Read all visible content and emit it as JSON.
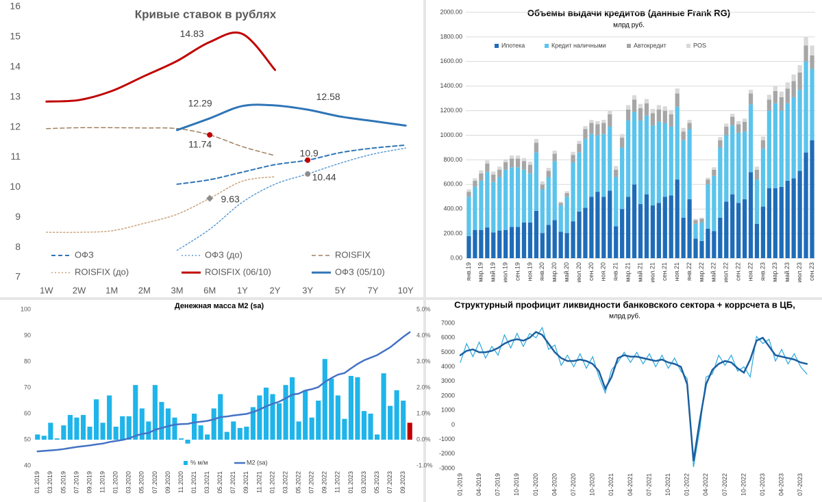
{
  "chart_data": [
    {
      "type": "line",
      "title": "Кривые ставок в рублях",
      "categories": [
        "1W",
        "2W",
        "1M",
        "2M",
        "3M",
        "6M",
        "1Y",
        "2Y",
        "3Y",
        "5Y",
        "7Y",
        "10Y"
      ],
      "ylim": [
        7,
        16
      ],
      "yticks": [
        7,
        8,
        9,
        10,
        11,
        12,
        13,
        14,
        15,
        16
      ],
      "smooth": true,
      "legend": "bottom",
      "series": [
        {
          "name": "ОФЗ",
          "color": "#2e75b6",
          "dash": "dashed",
          "width": 2,
          "marker_color": "#c00000",
          "values": [
            null,
            null,
            null,
            null,
            10.1,
            10.25,
            10.5,
            10.75,
            10.9,
            11.15,
            11.3,
            11.4
          ],
          "value_labels": [
            null,
            null,
            null,
            null,
            null,
            null,
            null,
            null,
            "10.9",
            null,
            null,
            null
          ]
        },
        {
          "name": "ОФЗ (до)",
          "color": "#5b9bd5",
          "dash": "dotted",
          "width": 1.5,
          "marker_color": "#8c8c8c",
          "values": [
            null,
            null,
            null,
            null,
            7.9,
            8.6,
            9.5,
            10.1,
            10.44,
            10.8,
            11.1,
            11.3
          ],
          "value_labels": [
            null,
            null,
            null,
            null,
            null,
            null,
            null,
            null,
            "10.44",
            null,
            null,
            null
          ]
        },
        {
          "name": "ROISFIX",
          "color": "#9e7f5f",
          "dash": "dashed",
          "width": 1.5,
          "marker_color": "#c00000",
          "values": [
            11.95,
            11.98,
            11.98,
            11.97,
            11.95,
            11.74,
            11.35,
            11.05,
            null,
            null,
            null,
            null
          ],
          "value_labels": [
            null,
            null,
            null,
            null,
            null,
            "11.74",
            null,
            null,
            null,
            null,
            null,
            null
          ]
        },
        {
          "name": "ROISFIX (до)",
          "color": "#c9a37a",
          "dash": "dotted",
          "width": 1.5,
          "marker_color": "#8c8c8c",
          "marker": "diamond",
          "values": [
            8.5,
            8.5,
            8.55,
            8.8,
            9.1,
            9.63,
            10.2,
            10.35,
            null,
            null,
            null,
            null
          ],
          "value_labels": [
            null,
            null,
            null,
            null,
            null,
            "9.63",
            null,
            null,
            null,
            null,
            null,
            null
          ]
        },
        {
          "name": "ROISFIX (06/10)",
          "color": "#c00000",
          "dash": "solid",
          "width": 3,
          "values": [
            12.85,
            12.9,
            13.2,
            13.7,
            14.2,
            14.83,
            15.1,
            13.9,
            null,
            null,
            null,
            null
          ],
          "value_labels": [
            null,
            null,
            null,
            null,
            null,
            "14.83",
            null,
            null,
            null,
            null,
            null,
            null
          ]
        },
        {
          "name": "ОФЗ (05/10)",
          "color": "#2e75b6",
          "dash": "solid",
          "width": 3,
          "values": [
            null,
            null,
            null,
            null,
            11.9,
            12.29,
            12.7,
            12.72,
            12.58,
            12.35,
            12.2,
            12.05
          ],
          "value_labels": [
            null,
            null,
            null,
            null,
            null,
            "12.29",
            null,
            null,
            "12.58",
            null,
            null,
            null
          ]
        }
      ]
    },
    {
      "type": "bar",
      "stacked": true,
      "title": "Объемы выдачи кредитов (данные Frank RG)",
      "subtitle": "млрд руб.",
      "grid": true,
      "legend": "top",
      "categories": [
        "янв.19",
        null,
        "мар.19",
        null,
        "май.19",
        null,
        "июл.19",
        null,
        "сен.19",
        null,
        "ноя.19",
        null,
        "янв.20",
        null,
        "мар.20",
        null,
        "май.20",
        null,
        "июл.20",
        null,
        "сен.20",
        null,
        "ноя.20",
        null,
        "янв.21",
        null,
        "мар.21",
        null,
        "май.21",
        null,
        "июл.21",
        null,
        "сен.21",
        null,
        "ноя.21",
        null,
        "янв.22",
        null,
        "мар.22",
        null,
        "май.22",
        null,
        "июл.22",
        null,
        "сен.22",
        null,
        "ноя.22",
        null,
        "янв.23",
        null,
        "мар.23",
        null,
        "май.23",
        null,
        "июл.23",
        null,
        "сен.23"
      ],
      "ylim": [
        0,
        2000
      ],
      "yticks": [
        {
          "value": 0,
          "label": "0.00"
        },
        {
          "value": 200,
          "label": "200.00"
        },
        {
          "value": 400,
          "label": "400.00"
        },
        {
          "value": 600,
          "label": "600.00"
        },
        {
          "value": 800,
          "label": "800.00"
        },
        {
          "value": 1000,
          "label": "1000.00"
        },
        {
          "value": 1200,
          "label": "1200.00"
        },
        {
          "value": 1400,
          "label": "1400.00"
        },
        {
          "value": 1600,
          "label": "1600.00"
        },
        {
          "value": 1800,
          "label": "1800.00"
        },
        {
          "value": 2000,
          "label": "2000.00"
        }
      ],
      "series": [
        {
          "name": "Ипотека",
          "color": "#1f6cb8",
          "values": [
            180,
            230,
            230,
            250,
            210,
            225,
            230,
            255,
            255,
            290,
            290,
            385,
            205,
            270,
            310,
            215,
            205,
            300,
            380,
            410,
            500,
            540,
            500,
            550,
            260,
            400,
            500,
            600,
            440,
            520,
            430,
            450,
            500,
            510,
            640,
            330,
            480,
            160,
            140,
            240,
            220,
            330,
            460,
            520,
            450,
            480,
            700,
            280,
            420,
            570,
            570,
            580,
            630,
            650,
            710,
            860,
            960
          ]
        },
        {
          "name": "Кредит наличными",
          "color": "#5bc4ec",
          "values": [
            320,
            350,
            400,
            450,
            410,
            435,
            490,
            485,
            485,
            430,
            400,
            475,
            355,
            390,
            480,
            215,
            295,
            480,
            480,
            560,
            510,
            460,
            510,
            520,
            400,
            500,
            620,
            590,
            680,
            640,
            650,
            660,
            600,
            560,
            590,
            630,
            570,
            120,
            150,
            360,
            450,
            570,
            540,
            560,
            570,
            550,
            550,
            360,
            470,
            630,
            690,
            620,
            630,
            660,
            660,
            740,
            580
          ]
        },
        {
          "name": "Автокредит",
          "color": "#a6a6a6",
          "values": [
            40,
            50,
            60,
            70,
            60,
            60,
            60,
            70,
            70,
            70,
            70,
            80,
            40,
            50,
            60,
            20,
            30,
            60,
            70,
            80,
            90,
            90,
            90,
            100,
            60,
            80,
            90,
            100,
            100,
            100,
            100,
            100,
            100,
            100,
            110,
            70,
            50,
            30,
            30,
            40,
            50,
            60,
            70,
            70,
            70,
            80,
            90,
            80,
            70,
            90,
            100,
            110,
            120,
            130,
            140,
            130,
            110
          ]
        },
        {
          "name": "POS",
          "color": "#d9d9d9",
          "values": [
            20,
            20,
            25,
            25,
            25,
            25,
            25,
            25,
            25,
            25,
            25,
            30,
            25,
            25,
            25,
            10,
            15,
            25,
            25,
            25,
            25,
            25,
            25,
            30,
            30,
            30,
            35,
            35,
            35,
            35,
            35,
            35,
            35,
            35,
            40,
            30,
            25,
            10,
            10,
            15,
            20,
            25,
            25,
            25,
            25,
            25,
            30,
            25,
            30,
            40,
            40,
            45,
            50,
            55,
            60,
            70,
            80
          ]
        }
      ]
    },
    {
      "type": "bar",
      "title": "Денежная масса М2 (sa)",
      "legend": "bottom",
      "categories": [
        "01.2019",
        null,
        "03.2019",
        null,
        "05.2019",
        null,
        "07.2019",
        null,
        "09.2019",
        null,
        "11.2019",
        null,
        "01.2020",
        null,
        "03.2020",
        null,
        "05.2020",
        null,
        "07.2020",
        null,
        "09.2020",
        null,
        "11.2020",
        null,
        "01.2021",
        null,
        "03.2021",
        null,
        "05.2021",
        null,
        "07.2021",
        null,
        "09.2021",
        null,
        "11.2021",
        null,
        "01.2022",
        null,
        "03.2022",
        null,
        "05.2022",
        null,
        "07.2022",
        null,
        "09.2022",
        null,
        "11.2022",
        null,
        "01.2023",
        null,
        "03.2023",
        null,
        "05.2023",
        null,
        "07.2023",
        null,
        "09.2023",
        null
      ],
      "ylim": [
        40,
        100
      ],
      "yticks": [
        40,
        50,
        60,
        70,
        80,
        90,
        100
      ],
      "y2lim": [
        -1,
        5
      ],
      "y2ticks": [
        {
          "value": -1,
          "label": "-1.0%"
        },
        {
          "value": 0,
          "label": "0.0%"
        },
        {
          "value": 1,
          "label": "1.0%"
        },
        {
          "value": 2,
          "label": "2.0%"
        },
        {
          "value": 3,
          "label": "3.0%"
        },
        {
          "value": 4,
          "label": "4.0%"
        },
        {
          "value": 5,
          "label": "5.0%"
        }
      ],
      "series": [
        {
          "name": "% м/м",
          "type": "bar",
          "axis": "y2",
          "color": "#1fb4ea",
          "last_color": "#c00000",
          "values": [
            0.2,
            0.15,
            0.65,
            0.05,
            0.55,
            0.95,
            0.85,
            0.95,
            0.5,
            1.55,
            0.65,
            1.7,
            0.5,
            0.9,
            0.9,
            2.1,
            1.2,
            0.7,
            2.1,
            1.45,
            1.2,
            0.85,
            0.05,
            -0.15,
            1.0,
            0.55,
            0.2,
            1.2,
            1.75,
            0.3,
            0.7,
            0.45,
            0.5,
            1.25,
            1.7,
            2.0,
            1.75,
            1.4,
            2.1,
            2.4,
            0.7,
            1.9,
            0.85,
            1.5,
            3.1,
            2.35,
            1.7,
            0.8,
            2.45,
            2.4,
            1.1,
            1.0,
            0.2,
            2.55,
            1.3,
            1.9,
            1.5,
            0.65
          ]
        },
        {
          "name": "M2 (sa)",
          "type": "line",
          "color": "#4472c4",
          "width": 2.5,
          "values": [
            45.5,
            45.7,
            45.9,
            46.1,
            46.4,
            46.8,
            47.2,
            47.5,
            47.8,
            48.2,
            48.5,
            49.1,
            49.5,
            49.9,
            50.5,
            51.5,
            52.2,
            52.6,
            53.8,
            54.5,
            55.2,
            55.8,
            56.0,
            56.1,
            56.6,
            56.9,
            57.2,
            57.8,
            58.7,
            58.9,
            59.3,
            59.6,
            59.9,
            60.6,
            61.6,
            62.8,
            63.8,
            64.6,
            65.9,
            67.3,
            67.7,
            68.9,
            69.4,
            70.2,
            72.2,
            73.7,
            75.0,
            75.6,
            77.4,
            79.1,
            80.5,
            81.5,
            82.5,
            84.0,
            85.5,
            87.5,
            89.5,
            91.3
          ]
        }
      ]
    },
    {
      "type": "line",
      "title": "Структурный профицит ликвидности банковского сектора + коррсчета в ЦБ,",
      "subtitle": "млрд руб.",
      "categories": [
        "01-2019",
        null,
        null,
        "04-2019",
        null,
        null,
        "07-2019",
        null,
        null,
        "10-2019",
        null,
        null,
        "01-2020",
        null,
        null,
        "04-2020",
        null,
        null,
        "07-2020",
        null,
        null,
        "10-2020",
        null,
        null,
        "01-2021",
        null,
        null,
        "04-2021",
        null,
        null,
        "07-2021",
        null,
        null,
        "10-2021",
        null,
        null,
        "01-2022",
        null,
        null,
        "04-2022",
        null,
        null,
        "07-2022",
        null,
        null,
        "10-2022",
        null,
        null,
        "01-2023",
        null,
        null,
        "04-2023",
        null,
        null,
        "07-2023",
        null
      ],
      "ylim": [
        -3000,
        7000
      ],
      "yticks": [
        -3000,
        -2000,
        -1000,
        0,
        1000,
        2000,
        3000,
        4000,
        5000,
        6000,
        7000
      ],
      "series": [
        {
          "color": "#29a8dc",
          "width": 1.2,
          "values": [
            4300,
            5600,
            4700,
            5700,
            4600,
            5400,
            4800,
            6200,
            5300,
            6300,
            5400,
            6300,
            6000,
            6700,
            5200,
            5500,
            4100,
            4800,
            4000,
            4900,
            3900,
            4700,
            3300,
            2200,
            3800,
            4300,
            5000,
            4300,
            5000,
            4200,
            4900,
            4000,
            4800,
            3900,
            4600,
            3700,
            3200,
            -2900,
            -300,
            3300,
            3500,
            4800,
            4100,
            4800,
            3700,
            4000,
            3300,
            6100,
            5600,
            5900,
            4400,
            5200,
            4200,
            4900,
            4000,
            3500
          ]
        },
        {
          "color": "#1b5e9e",
          "width": 2.5,
          "values": [
            4800,
            5100,
            5200,
            5000,
            5000,
            5100,
            5300,
            5600,
            5800,
            5900,
            5800,
            6000,
            6400,
            6200,
            5600,
            5000,
            4600,
            4400,
            4400,
            4500,
            4400,
            4200,
            3700,
            2500,
            3300,
            4600,
            4800,
            4700,
            4700,
            4600,
            4500,
            4400,
            4500,
            4300,
            4200,
            4000,
            2800,
            -2500,
            300,
            2800,
            3800,
            4200,
            4400,
            4300,
            3900,
            3600,
            4500,
            5800,
            6000,
            5400,
            4800,
            4700,
            4600,
            4500,
            4300,
            4200
          ]
        }
      ]
    }
  ]
}
